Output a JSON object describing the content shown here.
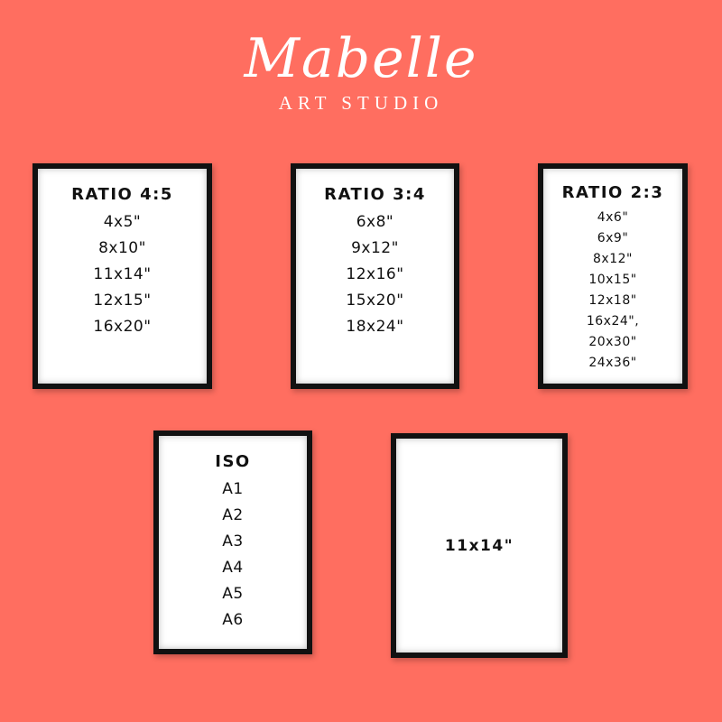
{
  "brand": {
    "name": "Mabelle",
    "tagline": "ART STUDIO"
  },
  "colors": {
    "background": "#ff6e60",
    "frame": "#111111",
    "mat": "#ffffff"
  },
  "frames": [
    {
      "title": "RATIO 4:5",
      "sizes": [
        "4x5\"",
        "8x10\"",
        "11x14\"",
        "12x15\"",
        "16x20\""
      ]
    },
    {
      "title": "RATIO 3:4",
      "sizes": [
        "6x8\"",
        "9x12\"",
        "12x16\"",
        "15x20\"",
        "18x24\""
      ]
    },
    {
      "title": "RATIO 2:3",
      "sizes": [
        "4x6\"",
        "6x9\"",
        "8x12\"",
        "10x15\"",
        "12x18\"",
        "16x24\",",
        "20x30\"",
        "24x36\""
      ]
    },
    {
      "title": "ISO",
      "sizes": [
        "A1",
        "A2",
        "A3",
        "A4",
        "A5",
        "A6"
      ]
    },
    {
      "title": "11x14\""
    }
  ]
}
